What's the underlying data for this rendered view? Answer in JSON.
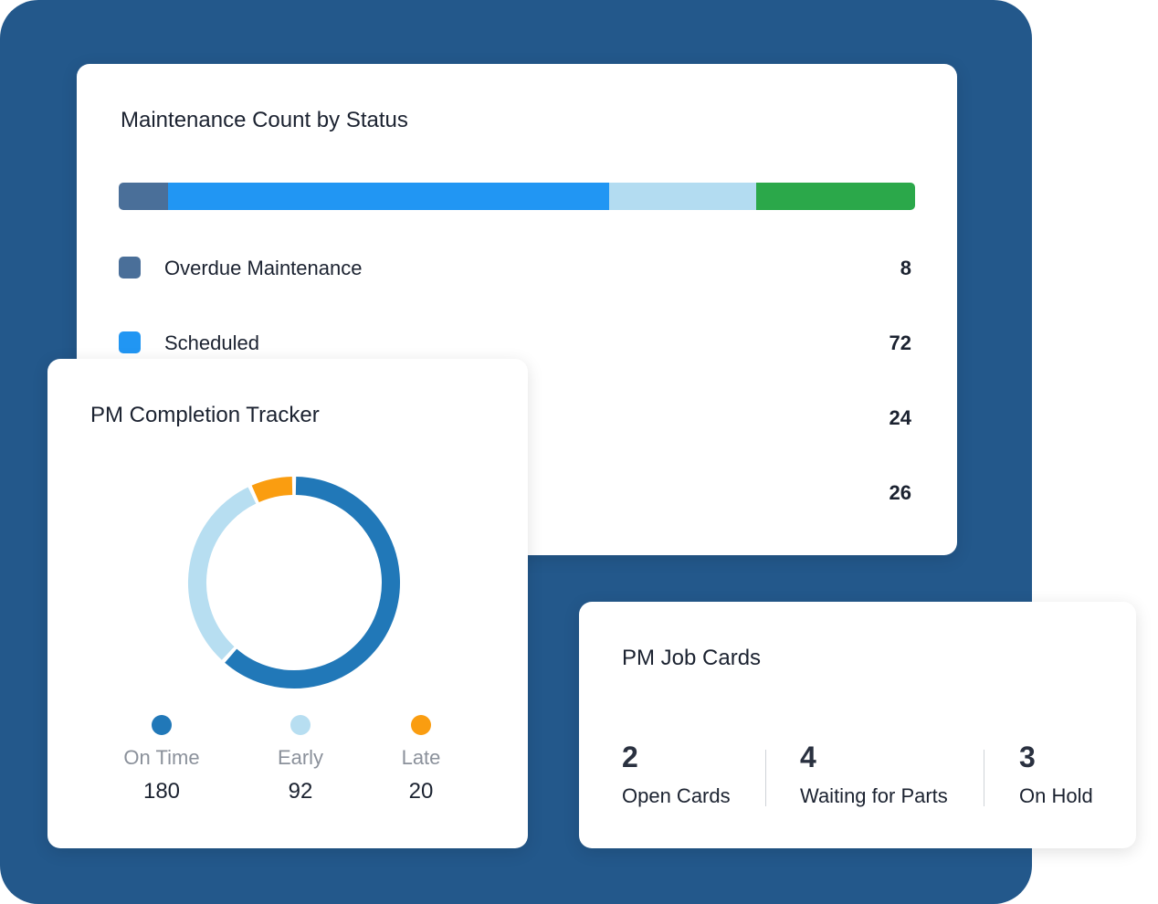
{
  "status_card": {
    "title": "Maintenance Count by Status",
    "items": [
      {
        "label": "Overdue Maintenance",
        "value": 8,
        "color": "#4a6f99"
      },
      {
        "label": "Scheduled",
        "value": 72,
        "color": "#2196f3"
      },
      {
        "label": "",
        "value": 24,
        "color": "#b3dcf1"
      },
      {
        "label": "",
        "value": 26,
        "color": "#2ba84a"
      }
    ]
  },
  "tracker_card": {
    "title": "PM Completion Tracker",
    "items": [
      {
        "label": "On Time",
        "value": 180,
        "color": "#2178b8"
      },
      {
        "label": "Early",
        "value": 92,
        "color": "#b7def1"
      },
      {
        "label": "Late",
        "value": 20,
        "color": "#fa9d10"
      }
    ]
  },
  "jobs_card": {
    "title": "PM Job Cards",
    "stats": [
      {
        "value": "2",
        "label": "Open Cards"
      },
      {
        "value": "4",
        "label": "Waiting for Parts"
      },
      {
        "value": "3",
        "label": "On Hold"
      }
    ]
  }
}
